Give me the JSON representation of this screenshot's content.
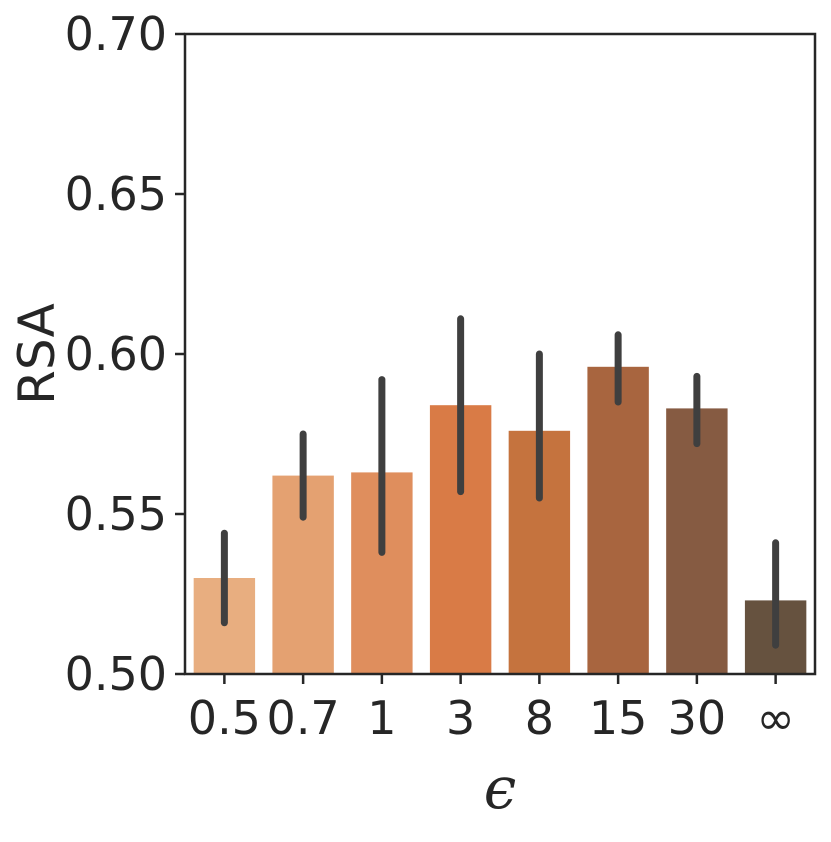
{
  "chart_data": {
    "type": "bar",
    "xlabel": "ϵ",
    "ylabel": "RSA",
    "ylim": [
      0.5,
      0.7
    ],
    "yticks": [
      "0.50",
      "0.55",
      "0.60",
      "0.65",
      "0.70"
    ],
    "categories": [
      "0.5",
      "0.7",
      "1",
      "3",
      "8",
      "15",
      "30",
      "∞"
    ],
    "values": [
      0.53,
      0.562,
      0.563,
      0.584,
      0.576,
      0.596,
      0.583,
      0.523
    ],
    "error_low": [
      0.516,
      0.549,
      0.538,
      0.557,
      0.555,
      0.585,
      0.572,
      0.509
    ],
    "error_high": [
      0.544,
      0.575,
      0.592,
      0.611,
      0.6,
      0.606,
      0.593,
      0.541
    ],
    "colors": [
      "#e8ae80",
      "#e4a171",
      "#df8e5d",
      "#d97b46",
      "#c5733e",
      "#a8653f",
      "#865b42",
      "#66523f"
    ],
    "error_color": "#3f3f3f",
    "grid": false,
    "legend": "none"
  }
}
